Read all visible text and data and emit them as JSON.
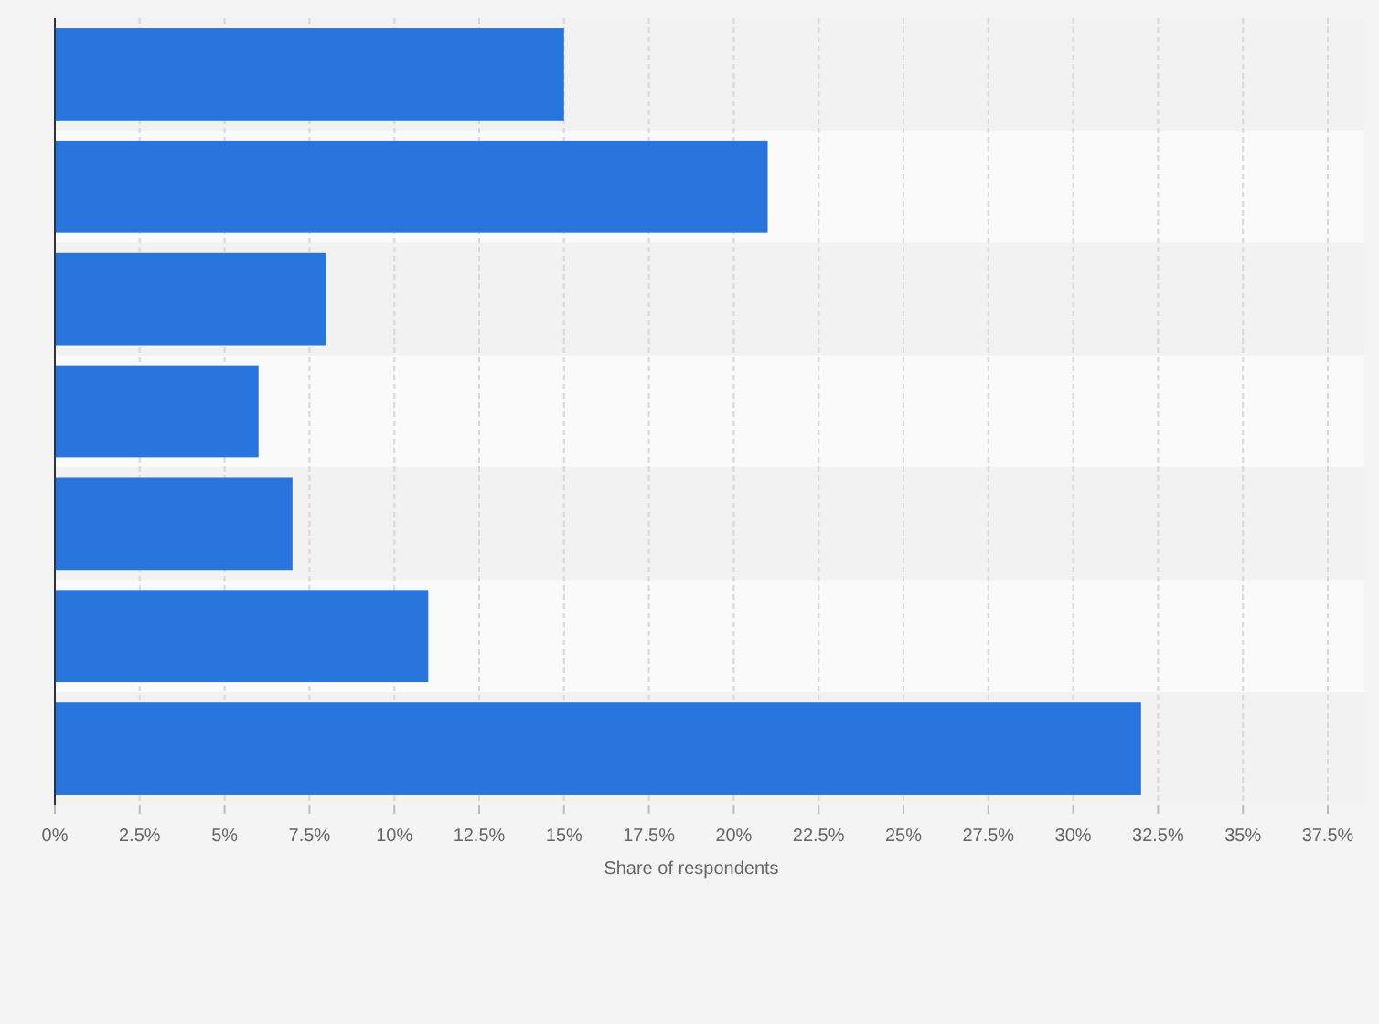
{
  "chart_data": {
    "type": "bar",
    "orientation": "horizontal",
    "xlabel": "Share of respondents",
    "categories": [
      null,
      null,
      null,
      null,
      null,
      null,
      null
    ],
    "values": [
      15,
      21,
      8,
      6,
      7,
      11,
      32
    ],
    "color": "#2876dd",
    "xlim": [
      0,
      37.5
    ],
    "xticks": [
      {
        "value": 0,
        "label": "0%"
      },
      {
        "value": 2.5,
        "label": "2.5%"
      },
      {
        "value": 5,
        "label": "5%"
      },
      {
        "value": 7.5,
        "label": "7.5%"
      },
      {
        "value": 10,
        "label": "10%"
      },
      {
        "value": 12.5,
        "label": "12.5%"
      },
      {
        "value": 15,
        "label": "15%"
      },
      {
        "value": 17.5,
        "label": "17.5%"
      },
      {
        "value": 20,
        "label": "20%"
      },
      {
        "value": 22.5,
        "label": "22.5%"
      },
      {
        "value": 25,
        "label": "25%"
      },
      {
        "value": 27.5,
        "label": "27.5%"
      },
      {
        "value": 30,
        "label": "30%"
      },
      {
        "value": 32.5,
        "label": "32.5%"
      },
      {
        "value": 35,
        "label": "35%"
      },
      {
        "value": 37.5,
        "label": "37.5%"
      }
    ],
    "grid": "x"
  }
}
